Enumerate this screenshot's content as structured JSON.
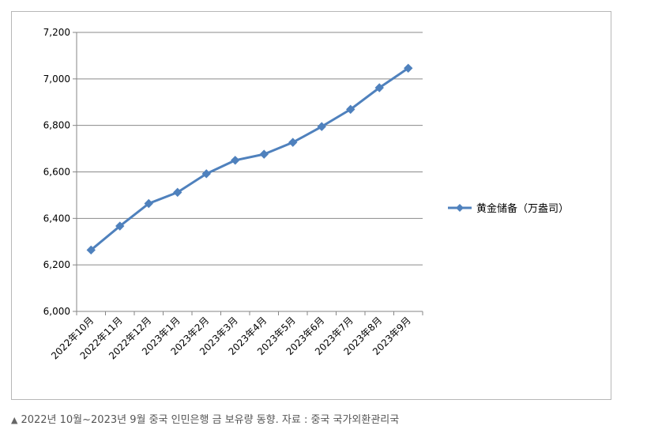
{
  "caption": {
    "marker": "▲",
    "text": "2022년 10월~2023년 9월 중국 인민은행 금 보유량 동향. 자료 : 중국 국가외환관리국"
  },
  "chart_data": {
    "type": "line",
    "title": "",
    "xlabel": "",
    "ylabel": "",
    "categories": [
      "2022年10月",
      "2022年11月",
      "2022年12月",
      "2023年1月",
      "2023年2月",
      "2023年3月",
      "2023年4月",
      "2023年5月",
      "2023年6月",
      "2023年7月",
      "2023年8月",
      "2023年9月"
    ],
    "series": [
      {
        "name": "黄金储备（万盎司）",
        "color": "#4f81bd",
        "marker": "diamond",
        "values": [
          6264,
          6367,
          6464,
          6512,
          6592,
          6650,
          6676,
          6727,
          6795,
          6869,
          6962,
          7046
        ]
      }
    ],
    "ylim": [
      6000,
      7200
    ],
    "yticks": [
      6000,
      6200,
      6400,
      6600,
      6800,
      7000,
      7200
    ],
    "ytick_labels": [
      "6,000",
      "6,200",
      "6,400",
      "6,600",
      "6,800",
      "7,000",
      "7,200"
    ],
    "grid": true,
    "legend_position": "right"
  }
}
